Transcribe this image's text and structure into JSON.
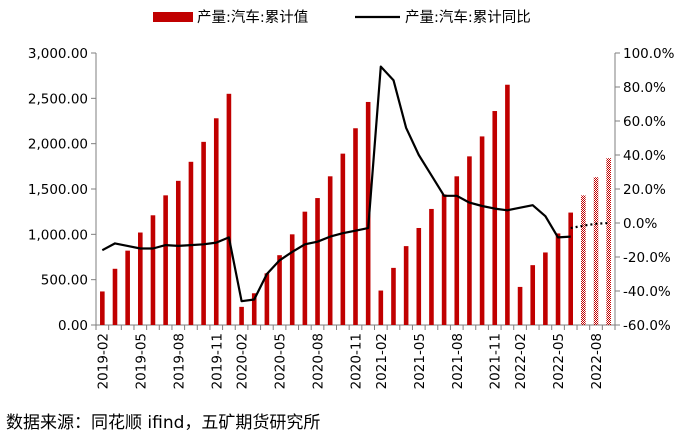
{
  "chart_data": {
    "type": "bar",
    "legend": {
      "position": "top",
      "bar_label": "产量:汽车:累计值",
      "line_label": "产量:汽车:累计同比"
    },
    "x_tick_labels": [
      "2019-02",
      "2019-05",
      "2019-08",
      "2019-11",
      "2020-02",
      "2020-05",
      "2020-08",
      "2020-11",
      "2021-02",
      "2021-05",
      "2021-08",
      "2021-11",
      "2022-02",
      "2022-05",
      "2022-08"
    ],
    "y_left": {
      "min": 0,
      "max": 3000,
      "step": 500,
      "tick_labels": [
        "0.00",
        "500.00",
        "1,000.00",
        "1,500.00",
        "2,000.00",
        "2,500.00",
        "3,000.00"
      ]
    },
    "y_right": {
      "min": -60,
      "max": 100,
      "step": 20,
      "tick_labels": [
        "-60.0%",
        "-40.0%",
        "-20.0%",
        "0.0%",
        "20.0%",
        "40.0%",
        "60.0%",
        "80.0%",
        "100.0%"
      ]
    },
    "categories": [
      "2019-02",
      "2019-03",
      "2019-04",
      "2019-05",
      "2019-06",
      "2019-07",
      "2019-08",
      "2019-09",
      "2019-10",
      "2019-11",
      "2019-12",
      "2020-02",
      "2020-03",
      "2020-04",
      "2020-05",
      "2020-06",
      "2020-07",
      "2020-08",
      "2020-09",
      "2020-10",
      "2020-11",
      "2020-12",
      "2021-02",
      "2021-03",
      "2021-04",
      "2021-05",
      "2021-06",
      "2021-07",
      "2021-08",
      "2021-09",
      "2021-10",
      "2021-11",
      "2021-12",
      "2022-02",
      "2022-03",
      "2022-04",
      "2022-05",
      "2022-06",
      "2022-07",
      "2022-08",
      "2022-09"
    ],
    "series": [
      {
        "name": "产量:汽车:累计值",
        "kind": "bar",
        "color": "#c00000",
        "values": [
          370,
          620,
          820,
          1020,
          1210,
          1430,
          1590,
          1800,
          2020,
          2280,
          2550,
          200,
          350,
          570,
          770,
          1000,
          1250,
          1400,
          1640,
          1890,
          2170,
          2460,
          380,
          630,
          870,
          1070,
          1280,
          1440,
          1640,
          1860,
          2080,
          2360,
          2650,
          420,
          660,
          800,
          1010,
          1240,
          null,
          null,
          null
        ],
        "forecast_values": [
          null,
          null,
          null,
          null,
          null,
          null,
          null,
          null,
          null,
          null,
          null,
          null,
          null,
          null,
          null,
          null,
          null,
          null,
          null,
          null,
          null,
          null,
          null,
          null,
          null,
          null,
          null,
          null,
          null,
          null,
          null,
          null,
          null,
          null,
          null,
          null,
          null,
          null,
          1430,
          1630,
          1840
        ]
      },
      {
        "name": "产量:汽车:累计同比",
        "kind": "line",
        "color": "#000000",
        "values": [
          -16,
          -12,
          -13.5,
          -15,
          -15,
          -13,
          -13.5,
          -13,
          -12.5,
          -11.5,
          -8.5,
          -46,
          -45,
          -30,
          -22,
          -17,
          -12.5,
          -11,
          -8,
          -6,
          -4.5,
          -3,
          92,
          84,
          56,
          40,
          28,
          16,
          16,
          12,
          10,
          8.5,
          7.5,
          9,
          10.5,
          4,
          -8.5,
          -8,
          null,
          null,
          null
        ],
        "forecast_values": [
          null,
          null,
          null,
          null,
          null,
          null,
          null,
          null,
          null,
          null,
          null,
          null,
          null,
          null,
          null,
          null,
          null,
          null,
          null,
          null,
          null,
          null,
          null,
          null,
          null,
          null,
          null,
          null,
          null,
          null,
          null,
          null,
          null,
          null,
          null,
          null,
          null,
          -3,
          -1.5,
          -0.5,
          0
        ]
      }
    ]
  },
  "source": "数据来源：同花顺 ifind，五矿期货研究所"
}
